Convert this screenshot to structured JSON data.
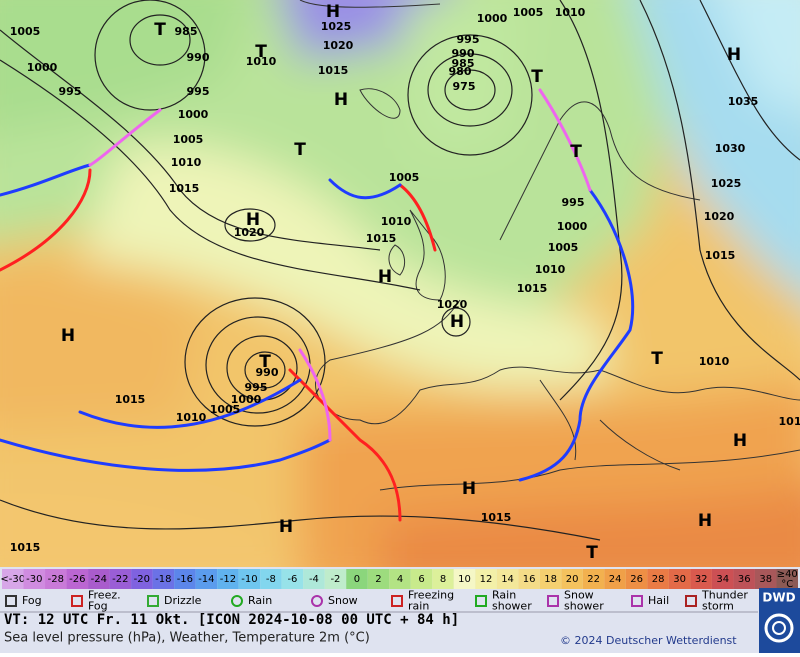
{
  "map": {
    "isobar_labels": [
      1005,
      1000,
      995,
      985,
      990,
      995,
      1000,
      1005,
      1010,
      1015,
      1020,
      1025,
      1020,
      1015,
      1010,
      1000,
      1005,
      1010,
      995,
      990,
      985,
      980,
      975,
      1005,
      1010,
      1015,
      1020,
      995,
      1000,
      1005,
      1010,
      1015,
      1035,
      1030,
      1025,
      1020,
      1015,
      1010,
      990,
      995,
      1000,
      1005,
      1010,
      1015,
      1015,
      1015,
      101
    ],
    "centers": [
      "H",
      "T",
      "T",
      "H",
      "T",
      "H",
      "H",
      "H",
      "T",
      "T",
      "H",
      "H",
      "T",
      "T",
      "H",
      "H",
      "H",
      "T",
      "H"
    ]
  },
  "temperature_scale": {
    "labels": [
      "<-30",
      -30,
      -28,
      -26,
      -24,
      -22,
      -20,
      -18,
      -16,
      -14,
      -12,
      -10,
      -8,
      -6,
      -4,
      -2,
      0,
      2,
      4,
      6,
      8,
      10,
      12,
      14,
      16,
      18,
      20,
      22,
      24,
      26,
      28,
      30,
      32,
      34,
      36,
      38,
      "≥40"
    ],
    "unit": "°C",
    "colors": [
      "#d7a6e8",
      "#d08ce0",
      "#c97ad8",
      "#bb66d2",
      "#a95ccc",
      "#9a5ed6",
      "#7f62e0",
      "#6b72e6",
      "#5c86ea",
      "#5b9ced",
      "#60b2ee",
      "#6fc6ef",
      "#82d6ee",
      "#97e2e9",
      "#aee8d9",
      "#bfeccb",
      "#8bd67c",
      "#9ddc7e",
      "#b3e384",
      "#c8ea8c",
      "#dcf09a",
      "#f5f7c6",
      "#f3f0a8",
      "#f3e79a",
      "#f4dc88",
      "#f5d070",
      "#f4c25e",
      "#f2b14f",
      "#f0a048",
      "#ee8f45",
      "#ea7b45",
      "#e36a48",
      "#d95a4e",
      "#cc5054",
      "#bd5258",
      "#a8585a",
      "#8c5a55"
    ]
  },
  "legend": [
    "Fog",
    "Freez.\nFog",
    "Drizzle",
    "Rain",
    "Snow",
    "Freezing\nrain",
    "Rain\nshower",
    "Snow\nshower",
    "Hail",
    "Thunder\nstorm"
  ],
  "footer": {
    "valid_time": "VT: 12 UTC Fr.  11 Okt. [ICON 2024-10-08  00 UTC + 84 h]",
    "description": "Sea level pressure (hPa), Weather, Temperature 2m (°C)",
    "copyright": "© 2024 Deutscher Wetterdienst",
    "logo": "DWD"
  }
}
